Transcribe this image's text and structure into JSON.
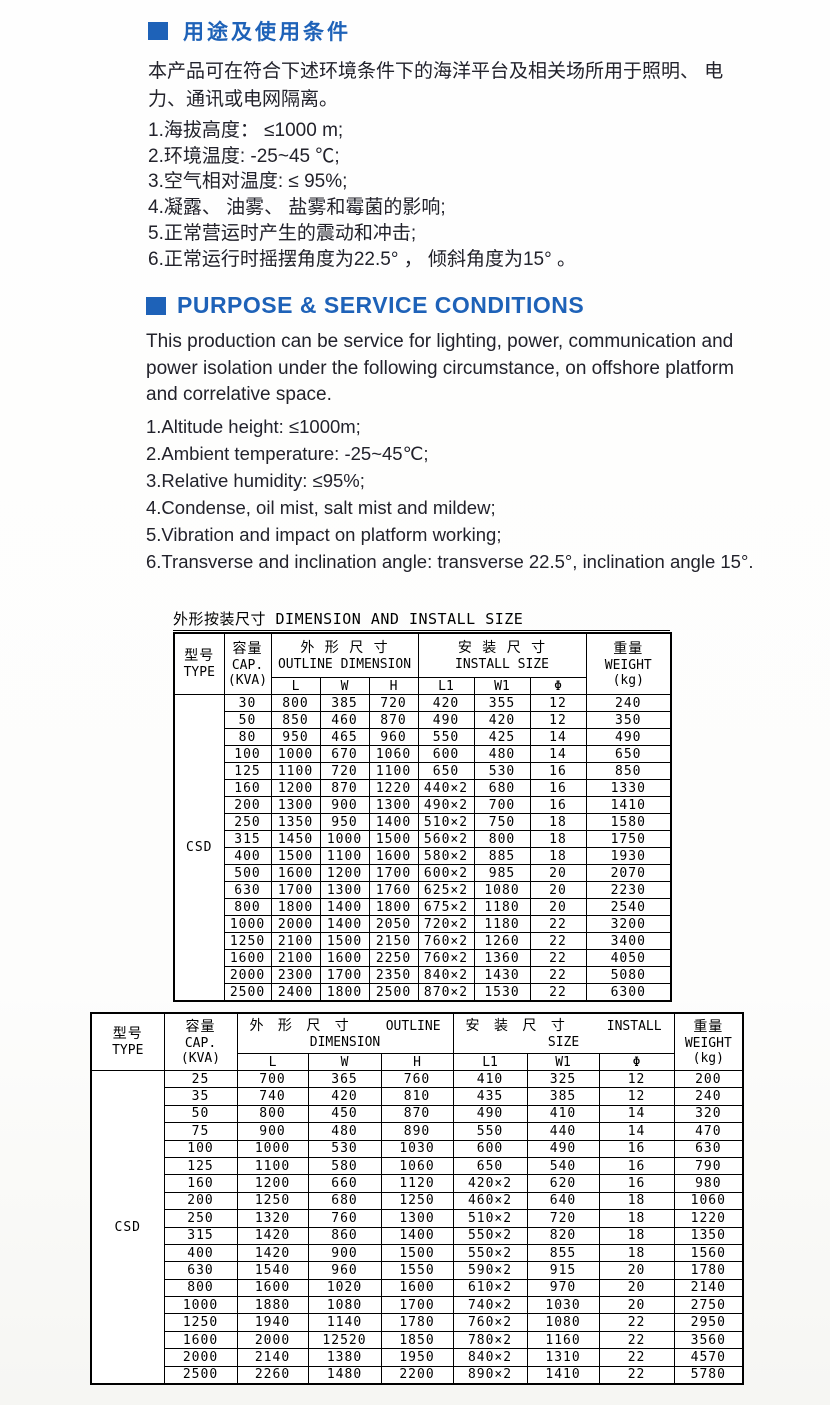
{
  "accent_color": "#1e62b8",
  "section_cn": {
    "title": "用途及使用条件",
    "paragraph": "本产品可在符合下述环境条件下的海洋平台及相关场所用于照明、 电力、通讯或电网隔离。",
    "items": [
      "1.海拔高度： ≤1000 m;",
      "2.环境温度: -25~45 ℃;",
      "3.空气相对温度: ≤ 95%;",
      "4.凝露、 油雾、 盐雾和霉菌的影响;",
      "5.正常营运时产生的震动和冲击;",
      "6.正常运行时摇摆角度为22.5° ， 倾斜角度为15° 。"
    ]
  },
  "section_en": {
    "title": "PURPOSE & SERVICE CONDITIONS",
    "paragraph": "This production can be service for lighting, power, communication and power isolation under the following circumstance, on offshore platform and correlative space.",
    "items": [
      "1.Altitude height: ≤1000m;",
      "2.Ambient temperature: -25~45℃;",
      "3.Relative humidity: ≤95%;",
      "4.Condense, oil mist, salt mist and mildew;",
      "5.Vibration and impact on platform working;",
      "6.Transverse and inclination angle: transverse 22.5°, inclination angle 15°."
    ]
  },
  "table1": {
    "title": "外形按装尺寸 DIMENSION AND INSTALL SIZE",
    "headers": {
      "type_cn": "型号",
      "type_en": "TYPE",
      "cap_cn": "容量",
      "cap_en": "CAP.",
      "cap_unit": "(KVA)",
      "outline_cn": "外 形 尺 寸",
      "outline_en": "OUTLINE DIMENSION",
      "install_cn": "安 装 尺 寸",
      "install_en": "INSTALL SIZE",
      "weight_cn": "重量",
      "weight_en": "WEIGHT",
      "weight_unit": "(kg)",
      "sub": [
        "L",
        "W",
        "H",
        "L1",
        "W1",
        "Φ"
      ]
    },
    "type_value": "CSD",
    "rows": [
      [
        "30",
        "800",
        "385",
        "720",
        "420",
        "355",
        "12",
        "240"
      ],
      [
        "50",
        "850",
        "460",
        "870",
        "490",
        "420",
        "12",
        "350"
      ],
      [
        "80",
        "950",
        "465",
        "960",
        "550",
        "425",
        "14",
        "490"
      ],
      [
        "100",
        "1000",
        "670",
        "1060",
        "600",
        "480",
        "14",
        "650"
      ],
      [
        "125",
        "1100",
        "720",
        "1100",
        "650",
        "530",
        "16",
        "850"
      ],
      [
        "160",
        "1200",
        "870",
        "1220",
        "440×2",
        "680",
        "16",
        "1330"
      ],
      [
        "200",
        "1300",
        "900",
        "1300",
        "490×2",
        "700",
        "16",
        "1410"
      ],
      [
        "250",
        "1350",
        "950",
        "1400",
        "510×2",
        "750",
        "18",
        "1580"
      ],
      [
        "315",
        "1450",
        "1000",
        "1500",
        "560×2",
        "800",
        "18",
        "1750"
      ],
      [
        "400",
        "1500",
        "1100",
        "1600",
        "580×2",
        "885",
        "18",
        "1930"
      ],
      [
        "500",
        "1600",
        "1200",
        "1700",
        "600×2",
        "985",
        "20",
        "2070"
      ],
      [
        "630",
        "1700",
        "1300",
        "1760",
        "625×2",
        "1080",
        "20",
        "2230"
      ],
      [
        "800",
        "1800",
        "1400",
        "1800",
        "675×2",
        "1180",
        "20",
        "2540"
      ],
      [
        "1000",
        "2000",
        "1400",
        "2050",
        "720×2",
        "1180",
        "22",
        "3200"
      ],
      [
        "1250",
        "2100",
        "1500",
        "2150",
        "760×2",
        "1260",
        "22",
        "3400"
      ],
      [
        "1600",
        "2100",
        "1600",
        "2250",
        "760×2",
        "1360",
        "22",
        "4050"
      ],
      [
        "2000",
        "2300",
        "1700",
        "2350",
        "840×2",
        "1430",
        "22",
        "5080"
      ],
      [
        "2500",
        "2400",
        "1800",
        "2500",
        "870×2",
        "1530",
        "22",
        "6300"
      ]
    ]
  },
  "table2": {
    "headers": {
      "type_cn": "型号",
      "type_en": "TYPE",
      "cap_cn": "容量",
      "cap_en": "CAP.",
      "cap_unit": "(KVA)",
      "outline_cn": "外 形 尺 寸",
      "outline_en1": "OUTLINE",
      "outline_en2": "DIMENSION",
      "install_cn": "安 装 尺 寸",
      "install_en1": "INSTALL",
      "install_en2": "SIZE",
      "weight_cn": "重量",
      "weight_en": "WEIGHT",
      "weight_unit": "(kg)",
      "sub": [
        "L",
        "W",
        "H",
        "L1",
        "W1",
        "Φ"
      ]
    },
    "type_value": "CSD",
    "rows": [
      [
        "25",
        "700",
        "365",
        "760",
        "410",
        "325",
        "12",
        "200"
      ],
      [
        "35",
        "740",
        "420",
        "810",
        "435",
        "385",
        "12",
        "240"
      ],
      [
        "50",
        "800",
        "450",
        "870",
        "490",
        "410",
        "14",
        "320"
      ],
      [
        "75",
        "900",
        "480",
        "890",
        "550",
        "440",
        "14",
        "470"
      ],
      [
        "100",
        "1000",
        "530",
        "1030",
        "600",
        "490",
        "16",
        "630"
      ],
      [
        "125",
        "1100",
        "580",
        "1060",
        "650",
        "540",
        "16",
        "790"
      ],
      [
        "160",
        "1200",
        "660",
        "1120",
        "420×2",
        "620",
        "16",
        "980"
      ],
      [
        "200",
        "1250",
        "680",
        "1250",
        "460×2",
        "640",
        "18",
        "1060"
      ],
      [
        "250",
        "1320",
        "760",
        "1300",
        "510×2",
        "720",
        "18",
        "1220"
      ],
      [
        "315",
        "1420",
        "860",
        "1400",
        "550×2",
        "820",
        "18",
        "1350"
      ],
      [
        "400",
        "1420",
        "900",
        "1500",
        "550×2",
        "855",
        "18",
        "1560"
      ],
      [
        "630",
        "1540",
        "960",
        "1550",
        "590×2",
        "915",
        "20",
        "1780"
      ],
      [
        "800",
        "1600",
        "1020",
        "1600",
        "610×2",
        "970",
        "20",
        "2140"
      ],
      [
        "1000",
        "1880",
        "1080",
        "1700",
        "740×2",
        "1030",
        "20",
        "2750"
      ],
      [
        "1250",
        "1940",
        "1140",
        "1780",
        "760×2",
        "1080",
        "22",
        "2950"
      ],
      [
        "1600",
        "2000",
        "12520",
        "1850",
        "780×2",
        "1160",
        "22",
        "3560"
      ],
      [
        "2000",
        "2140",
        "1380",
        "1950",
        "840×2",
        "1310",
        "22",
        "4570"
      ],
      [
        "2500",
        "2260",
        "1480",
        "2200",
        "890×2",
        "1410",
        "22",
        "5780"
      ]
    ]
  }
}
